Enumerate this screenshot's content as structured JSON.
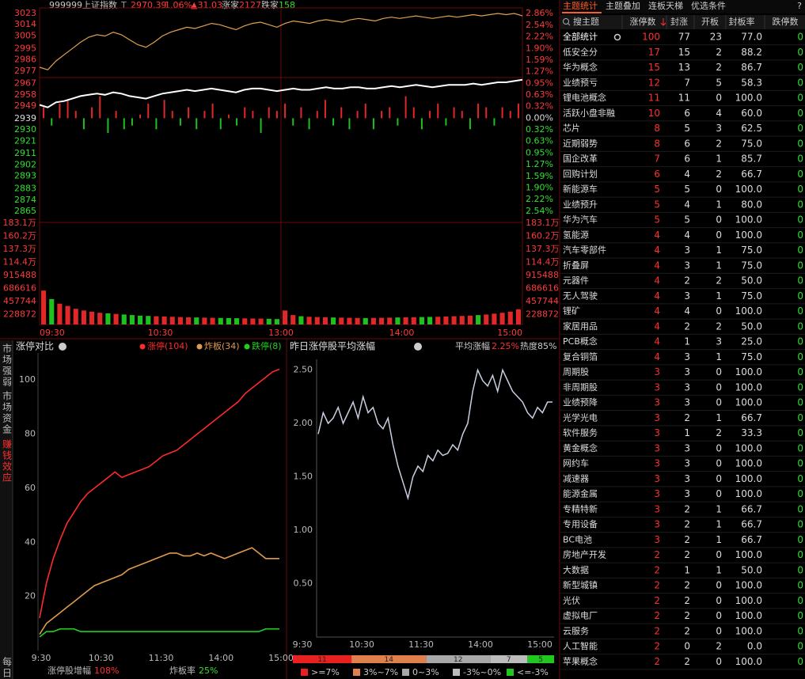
{
  "header": {
    "code": "999999",
    "name": "上证指数",
    "flag": "T",
    "price": "2970.39",
    "pct": "1.06%",
    "change": "▲31.03",
    "up_label": "涨家",
    "up": "2127",
    "down_label": "跌家",
    "down": "158"
  },
  "side_tabs": [
    "市场强弱",
    "市场资金",
    "赚钱效应"
  ],
  "daily": "每日",
  "chart_data": [
    {
      "type": "line",
      "series": [
        {
          "color": "#e0a050",
          "values": [
            2980,
            2978,
            2985,
            2990,
            2995,
            3000,
            3004,
            3006,
            3005,
            3008,
            3006,
            3002,
            2998,
            2996,
            3000,
            3005,
            3008,
            3010,
            3012,
            3011,
            3013,
            3015,
            3014,
            3012,
            3010,
            3013,
            3015,
            3016,
            3014,
            3012,
            3015,
            3017,
            3016,
            3015,
            3017,
            3018,
            3017,
            3016,
            3018,
            3019,
            3018,
            3017,
            3019,
            3020,
            3019,
            3020,
            3021,
            3020,
            3019,
            3020,
            3021,
            3020,
            3021,
            3022,
            3021,
            3022,
            3023,
            3022,
            3023,
            3021
          ]
        },
        {
          "color": "#ffffff",
          "values": [
            2950,
            2948,
            2952,
            2953,
            2955,
            2957,
            2958,
            2959,
            2958,
            2960,
            2959,
            2957,
            2956,
            2955,
            2957,
            2959,
            2960,
            2961,
            2962,
            2961,
            2962,
            2963,
            2962,
            2961,
            2960,
            2962,
            2963,
            2963,
            2962,
            2961,
            2962,
            2963,
            2962,
            2962,
            2963,
            2964,
            2963,
            2963,
            2964,
            2964,
            2963,
            2963,
            2964,
            2965,
            2964,
            2965,
            2966,
            2965,
            2964,
            2965,
            2966,
            2966,
            2966,
            2967,
            2966,
            2967,
            2968,
            2968,
            2969,
            2970
          ]
        },
        {
          "type": "bar",
          "axis": "y2",
          "colors": [
            "#e02828",
            "#20c020"
          ],
          "values": [
            0.3,
            -0.2,
            0.4,
            0.5,
            0.2,
            -0.3,
            0.3,
            0.6,
            -0.4,
            0.2,
            -0.3,
            -0.2,
            0.1,
            0.4,
            -0.3,
            0.5,
            0.2,
            -0.2,
            0.3,
            -0.3,
            0.2,
            0.4,
            -0.3,
            0.1,
            -0.2,
            0.3,
            0.2,
            -0.4,
            0.3,
            0.2,
            0.4,
            -0.2,
            0.3,
            -0.3,
            0.2,
            0.5,
            -0.2,
            0.3,
            -0.3,
            0.2,
            0.4,
            -0.3,
            0.2,
            0.3,
            -0.2,
            0.6,
            0.3,
            -0.3,
            0.2,
            0.4,
            -0.2,
            0.3,
            0.2,
            -0.3,
            0.4,
            0.3,
            -0.2,
            0.3,
            0.2,
            0.4
          ]
        }
      ],
      "ylim": [
        2856.8,
        3027.4
      ],
      "yticks": [
        3023,
        3014,
        3005,
        2995,
        2986,
        2977,
        2967,
        2958,
        2949,
        2939,
        2930,
        2921,
        2911,
        2902,
        2893,
        2883,
        2874,
        2865
      ],
      "y2lim": [
        -2.82,
        3.01
      ],
      "y2ticks": [
        {
          "value": 2.86,
          "label": "2.86%"
        },
        {
          "value": 2.54,
          "label": "2.54%"
        },
        {
          "value": 2.22,
          "label": "2.22%"
        },
        {
          "value": 1.9,
          "label": "1.90%"
        },
        {
          "value": 1.59,
          "label": "1.59%"
        },
        {
          "value": 1.27,
          "label": "1.27%"
        },
        {
          "value": 0.95,
          "label": "0.95%"
        },
        {
          "value": 0.63,
          "label": "0.63%"
        },
        {
          "value": 0.32,
          "label": "0.32%"
        },
        {
          "value": 0,
          "label": "0.00%"
        },
        {
          "value": -0.32,
          "label": "0.32%"
        },
        {
          "value": -0.63,
          "label": "0.63%"
        },
        {
          "value": -0.95,
          "label": "0.95%"
        },
        {
          "value": -1.27,
          "label": "1.27%"
        },
        {
          "value": -1.59,
          "label": "1.59%"
        },
        {
          "value": -1.9,
          "label": "1.90%"
        },
        {
          "value": -2.22,
          "label": "2.22%"
        },
        {
          "value": -2.54,
          "label": "2.54%"
        }
      ],
      "x_labels": [
        "09:30",
        "10:30",
        "13:00",
        "14:00",
        "15:00"
      ]
    },
    {
      "type": "bar",
      "values": [
        650000,
        500000,
        420000,
        380000,
        330000,
        300000,
        280000,
        260000,
        250000,
        240000,
        230000,
        220000,
        210000,
        205000,
        200000,
        195000,
        190000,
        185000,
        180000,
        178000,
        175000,
        172000,
        170000,
        168000,
        165000,
        163000,
        160000,
        158000,
        155000,
        150000,
        300000,
        220000,
        200000,
        190000,
        185000,
        180000,
        178000,
        175000,
        172000,
        170000,
        168000,
        170000,
        172000,
        175000,
        178000,
        180000,
        182000,
        185000,
        188000,
        190000,
        195000,
        200000,
        205000,
        210000,
        220000,
        230000,
        245000,
        260000,
        280000,
        320000
      ],
      "colors": [
        "#e02828",
        "#20c020"
      ],
      "ylim": [
        0,
        1831000
      ],
      "yticks": [
        {
          "value": 1831000,
          "label": "183.1万"
        },
        {
          "value": 1602000,
          "label": "160.2万"
        },
        {
          "value": 1373000,
          "label": "137.3万"
        },
        {
          "value": 1144000,
          "label": "114.4万"
        },
        915488,
        686616,
        457744,
        228872
      ]
    },
    {
      "type": "line",
      "title": "涨停对比",
      "series": [
        {
          "name": "涨停(104)",
          "color": "#ff2a2a",
          "values": [
            12,
            25,
            34,
            41,
            47,
            51,
            55,
            58,
            60,
            62,
            64,
            66,
            64,
            65,
            66,
            67,
            68,
            70,
            72,
            73,
            74,
            76,
            78,
            80,
            82,
            84,
            86,
            88,
            90,
            92,
            95,
            97,
            99,
            101,
            103,
            104
          ]
        },
        {
          "name": "炸板(34)",
          "color": "#e09a50",
          "values": [
            6,
            10,
            12,
            14,
            16,
            18,
            20,
            22,
            24,
            25,
            26,
            27,
            28,
            30,
            31,
            32,
            33,
            34,
            35,
            36,
            36,
            35,
            35,
            36,
            35,
            36,
            35,
            34,
            35,
            36,
            37,
            38,
            36,
            34,
            34,
            34
          ]
        },
        {
          "name": "跌停(8)",
          "color": "#20d020",
          "values": [
            5,
            7,
            7,
            8,
            8,
            8,
            7,
            7,
            7,
            7,
            7,
            7,
            7,
            7,
            7,
            7,
            7,
            7,
            7,
            7,
            7,
            7,
            7,
            7,
            7,
            7,
            7,
            7,
            7,
            7,
            7,
            7,
            7,
            8,
            8,
            8
          ]
        }
      ],
      "ylim": [
        0,
        110
      ],
      "yticks": [
        20,
        40,
        60,
        80,
        100
      ],
      "x_labels": [
        "9:30",
        "10:30",
        "11:30",
        "14:00",
        "15:00"
      ],
      "footer": [
        {
          "label": "涨停股增幅",
          "value": "108%",
          "color": "#ff3030"
        },
        {
          "label": "炸板率",
          "value": "25%",
          "color": "#30e030"
        }
      ]
    },
    {
      "type": "line",
      "title": "昨日涨停股平均涨幅",
      "stat_label": "平均涨幅",
      "stat_value": "2.25%",
      "heat": "热度85%",
      "series": [
        {
          "color": "#c8d0e0",
          "values": [
            1.9,
            2.1,
            2.0,
            2.05,
            2.15,
            2.0,
            2.1,
            2.2,
            2.05,
            2.25,
            2.1,
            2.15,
            2.0,
            1.95,
            2.05,
            1.8,
            1.6,
            1.45,
            1.3,
            1.5,
            1.6,
            1.55,
            1.7,
            1.65,
            1.75,
            1.7,
            1.72,
            1.8,
            1.75,
            1.9,
            2.0,
            2.3,
            2.5,
            2.4,
            2.35,
            2.45,
            2.3,
            2.5,
            2.4,
            2.3,
            2.25,
            2.2,
            2.1,
            2.05,
            2.15,
            2.1,
            2.2,
            2.2
          ]
        }
      ],
      "ylim": [
        0,
        2.6
      ],
      "yticks": [
        {
          "value": 0.5,
          "label": "0.50"
        },
        {
          "value": 1,
          "label": "1.00"
        },
        {
          "value": 1.5,
          "label": "1.50"
        },
        {
          "value": 2,
          "label": "2.00"
        },
        {
          "value": 2.5,
          "label": "2.50"
        }
      ],
      "x_labels": [
        "9:30",
        "10:30",
        "11:30",
        "14:00",
        "15:00"
      ],
      "distribution": {
        "values": [
          11,
          14,
          12,
          7,
          5
        ],
        "labels": [
          ">=7%",
          "3%~7%",
          "0~3%",
          "-3%~0%",
          "<=-3%"
        ],
        "colors": [
          "#e82020",
          "#e0804c",
          "#a8a8a8",
          "#bcbcbc",
          "#20c820"
        ]
      }
    }
  ],
  "theme_table": {
    "tabs": [
      "主题统计",
      "主题叠加",
      "连板天梯",
      "优选条件"
    ],
    "help": "?",
    "search": "搜主题",
    "columns": [
      "涨停数",
      "封涨",
      "开板",
      "封板率",
      "跌停数"
    ],
    "rows": [
      [
        "全部统计",
        "100",
        "77",
        "23",
        "77.0",
        "0"
      ],
      [
        "低安全分",
        "17",
        "15",
        "2",
        "88.2",
        "0"
      ],
      [
        "华为概念",
        "15",
        "13",
        "2",
        "86.7",
        "0"
      ],
      [
        "业绩预亏",
        "12",
        "7",
        "5",
        "58.3",
        "0"
      ],
      [
        "锂电池概念",
        "11",
        "11",
        "0",
        "100.0",
        "0"
      ],
      [
        "活跃小盘非融",
        "10",
        "6",
        "4",
        "60.0",
        "0"
      ],
      [
        "芯片",
        "8",
        "5",
        "3",
        "62.5",
        "0"
      ],
      [
        "近期弱势",
        "8",
        "6",
        "2",
        "75.0",
        "0"
      ],
      [
        "国企改革",
        "7",
        "6",
        "1",
        "85.7",
        "0"
      ],
      [
        "回购计划",
        "6",
        "4",
        "2",
        "66.7",
        "0"
      ],
      [
        "新能源车",
        "5",
        "5",
        "0",
        "100.0",
        "0"
      ],
      [
        "业绩预升",
        "5",
        "4",
        "1",
        "80.0",
        "0"
      ],
      [
        "华为汽车",
        "5",
        "5",
        "0",
        "100.0",
        "0"
      ],
      [
        "氢能源",
        "4",
        "4",
        "0",
        "100.0",
        "0"
      ],
      [
        "汽车零部件",
        "4",
        "3",
        "1",
        "75.0",
        "0"
      ],
      [
        "折叠屏",
        "4",
        "3",
        "1",
        "75.0",
        "0"
      ],
      [
        "元器件",
        "4",
        "2",
        "2",
        "50.0",
        "0"
      ],
      [
        "无人驾驶",
        "4",
        "3",
        "1",
        "75.0",
        "0"
      ],
      [
        "锂矿",
        "4",
        "4",
        "0",
        "100.0",
        "0"
      ],
      [
        "家居用品",
        "4",
        "2",
        "2",
        "50.0",
        "0"
      ],
      [
        "PCB概念",
        "4",
        "1",
        "3",
        "25.0",
        "0"
      ],
      [
        "复合铜箔",
        "4",
        "3",
        "1",
        "75.0",
        "0"
      ],
      [
        "周期股",
        "3",
        "3",
        "0",
        "100.0",
        "0"
      ],
      [
        "非周期股",
        "3",
        "3",
        "0",
        "100.0",
        "0"
      ],
      [
        "业绩预降",
        "3",
        "3",
        "0",
        "100.0",
        "0"
      ],
      [
        "光学光电",
        "3",
        "2",
        "1",
        "66.7",
        "0"
      ],
      [
        "软件服务",
        "3",
        "1",
        "2",
        "33.3",
        "0"
      ],
      [
        "黄金概念",
        "3",
        "3",
        "0",
        "100.0",
        "0"
      ],
      [
        "网约车",
        "3",
        "3",
        "0",
        "100.0",
        "0"
      ],
      [
        "减速器",
        "3",
        "3",
        "0",
        "100.0",
        "0"
      ],
      [
        "能源金属",
        "3",
        "3",
        "0",
        "100.0",
        "0"
      ],
      [
        "专精特新",
        "3",
        "2",
        "1",
        "66.7",
        "0"
      ],
      [
        "专用设备",
        "3",
        "2",
        "1",
        "66.7",
        "0"
      ],
      [
        "BC电池",
        "3",
        "2",
        "1",
        "66.7",
        "0"
      ],
      [
        "房地产开发",
        "2",
        "2",
        "0",
        "100.0",
        "0"
      ],
      [
        "大数据",
        "2",
        "1",
        "1",
        "50.0",
        "0"
      ],
      [
        "新型城镇",
        "2",
        "2",
        "0",
        "100.0",
        "0"
      ],
      [
        "光伏",
        "2",
        "2",
        "0",
        "100.0",
        "0"
      ],
      [
        "虚拟电厂",
        "2",
        "2",
        "0",
        "100.0",
        "0"
      ],
      [
        "云服务",
        "2",
        "2",
        "0",
        "100.0",
        "0"
      ],
      [
        "人工智能",
        "2",
        "0",
        "2",
        "0.0",
        "0"
      ],
      [
        "苹果概念",
        "2",
        "2",
        "0",
        "100.0",
        "0"
      ]
    ]
  }
}
